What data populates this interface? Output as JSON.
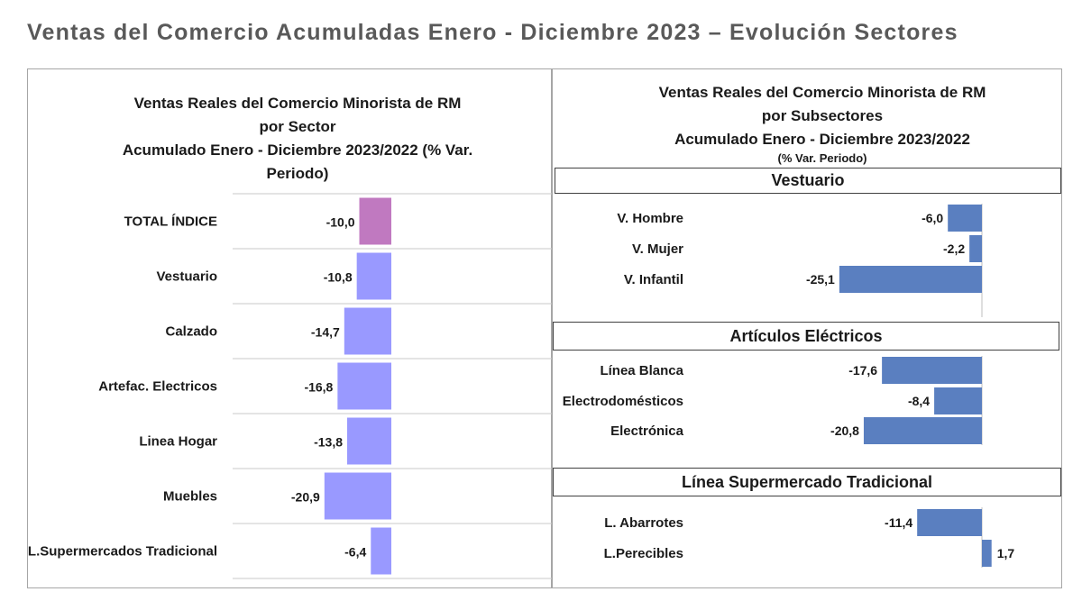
{
  "page_title": "Ventas del Comercio Acumuladas Enero - Diciembre 2023 – Evolución Sectores",
  "chart_data": [
    {
      "type": "bar",
      "orientation": "horizontal",
      "title": [
        "Ventas Reales del Comercio Minorista de RM",
        "por Sector",
        "Acumulado Enero - Diciembre 2023/2022 (% Var.",
        "Periodo)"
      ],
      "categories": [
        "TOTAL ÍNDICE",
        "Vestuario",
        "Calzado",
        "Artefac. Electricos",
        "Linea Hogar",
        "Muebles",
        "L.Supermercados Tradicional"
      ],
      "values": [
        -10.0,
        -10.8,
        -14.7,
        -16.8,
        -13.8,
        -20.9,
        -6.4
      ],
      "value_labels": [
        "-10,0",
        "-10,8",
        "-14,7",
        "-16,8",
        "-13,8",
        "-20,9",
        "-6,4"
      ],
      "colors": [
        "#c079c0",
        "#9999ff",
        "#9999ff",
        "#9999ff",
        "#9999ff",
        "#9999ff",
        "#9999ff"
      ],
      "grid": true
    },
    {
      "type": "bar",
      "orientation": "horizontal",
      "title": [
        "Ventas Reales del Comercio Minorista de RM",
        "por Subsectores",
        "Acumulado Enero - Diciembre 2023/2022"
      ],
      "subtitle": "(% Var. Periodo)",
      "bar_color": "#5a7fc0",
      "groups": [
        {
          "name": "Vestuario",
          "categories": [
            "V. Hombre",
            "V. Mujer",
            "V. Infantil"
          ],
          "values": [
            -6.0,
            -2.2,
            -25.1
          ],
          "value_labels": [
            "-6,0",
            "-2,2",
            "-25,1"
          ]
        },
        {
          "name": "Artículos Eléctricos",
          "categories": [
            "Línea Blanca",
            "Electrodomésticos",
            "Electrónica"
          ],
          "values": [
            -17.6,
            -8.4,
            -20.8
          ],
          "value_labels": [
            "-17,6",
            "-8,4",
            "-20,8"
          ]
        },
        {
          "name": "Línea  Supermercado Tradicional",
          "categories": [
            "L. Abarrotes",
            "L.Perecibles"
          ],
          "values": [
            -11.4,
            1.7
          ],
          "value_labels": [
            "-11,4",
            "1,7"
          ]
        }
      ]
    }
  ]
}
